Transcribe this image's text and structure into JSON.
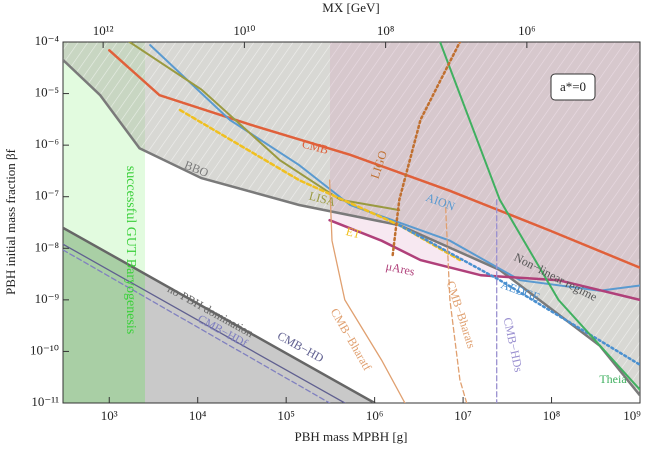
{
  "chart_data": {
    "type": "line",
    "xlabel": "PBH mass MPBH [g]",
    "ylabel": "PBH initial mass fraction βf",
    "x2label": "MX [GeV]",
    "xscale": "log",
    "yscale": "log",
    "xlim": [
      300,
      1000000000.0
    ],
    "ylim": [
      1e-11,
      0.0001
    ],
    "x2lim": [
      3700000000000.0,
      25000.0
    ],
    "xticks": [
      {
        "value": 1000.0,
        "label": "10³"
      },
      {
        "value": 10000.0,
        "label": "10⁴"
      },
      {
        "value": 100000.0,
        "label": "10⁵"
      },
      {
        "value": 1000000.0,
        "label": "10⁶"
      },
      {
        "value": 10000000.0,
        "label": "10⁷"
      },
      {
        "value": 100000000.0,
        "label": "10⁸"
      },
      {
        "value": 1000000000.0,
        "label": "10⁹"
      }
    ],
    "yticks": [
      {
        "value": 0.0001,
        "label": "10⁻⁴"
      },
      {
        "value": 1e-05,
        "label": "10⁻⁵"
      },
      {
        "value": 1e-06,
        "label": "10⁻⁶"
      },
      {
        "value": 1e-07,
        "label": "10⁻⁷"
      },
      {
        "value": 1e-08,
        "label": "10⁻⁸"
      },
      {
        "value": 1e-09,
        "label": "10⁻⁹"
      },
      {
        "value": 1e-10,
        "label": "10⁻¹⁰"
      },
      {
        "value": 1e-11,
        "label": "10⁻¹¹"
      }
    ],
    "x2ticks": [
      {
        "value": 1000000000000.0,
        "label": "10¹²"
      },
      {
        "value": 10000000000.0,
        "label": "10¹⁰"
      },
      {
        "value": 100000000.0,
        "label": "10⁸"
      },
      {
        "value": 1000000.0,
        "label": "10⁶"
      }
    ],
    "annotations": [
      "successful GUT Baryogenesis",
      "Non−linear regime",
      "a*=0"
    ],
    "series": [
      {
        "name": "BBO",
        "color": "#7a7a7a",
        "x": [
          300,
          790,
          2200,
          11000,
          140000,
          1900000,
          26000000,
          350000000,
          1000000000.0
        ],
        "values": [
          4.5e-05,
          9.3e-06,
          8.7e-07,
          2.3e-07,
          6.9e-08,
          2.8e-08,
          3.8e-09,
          1.3e-10,
          1.4e-11
        ]
      },
      {
        "name": "CMB",
        "color": "#e0603a",
        "x": [
          1000,
          3700,
          39000,
          530000,
          7100000,
          96000000,
          1000000000.0
        ],
        "values": [
          6.9e-05,
          9.3e-06,
          2.5e-06,
          6.5e-07,
          1.3e-07,
          2.2e-08,
          4.2e-09
        ]
      },
      {
        "name": "AION",
        "color": "#5a9ad0",
        "x": [
          2900,
          23000,
          140000,
          530000,
          7100000,
          44000000,
          350000000,
          1000000000.0
        ],
        "values": [
          8.7e-05,
          3.1e-06,
          4.1e-07,
          6.9e-08,
          1.4e-08,
          2.4e-09,
          1.5e-09,
          1.9e-09
        ]
      },
      {
        "name": "LISA",
        "color": "#9a9a40",
        "x": [
          1700,
          11000,
          85000,
          410000,
          1900000
        ],
        "values": [
          0.0001,
          1.2e-05,
          5.1e-07,
          8.7e-08,
          5.5e-08
        ]
      },
      {
        "name": "ET",
        "color": "#f0c020",
        "x": [
          6300,
          140000,
          1900000,
          9200000
        ],
        "values": [
          4.8e-06,
          2.1e-07,
          2.8e-08,
          5.9e-09
        ]
      },
      {
        "name": "μAres",
        "color": "#b0407a",
        "x": [
          310000,
          1200000,
          3300000,
          16000000,
          120000000,
          1000000000.0
        ],
        "values": [
          3.5e-08,
          1.4e-08,
          5.9e-09,
          3e-09,
          2.4e-09,
          1e-09
        ]
      },
      {
        "name": "AEDGE",
        "color": "#4a90d0",
        "x": [
          1900000,
          26000000,
          1000000000.0
        ],
        "values": [
          2.8e-08,
          2.4e-09,
          5.5e-11
        ]
      },
      {
        "name": "Theia",
        "color": "#40b060",
        "x": [
          5500000,
          26000000,
          120000000,
          1000000000.0
        ],
        "values": [
          0.0001,
          8.7e-08,
          1e-09,
          1.8e-11
        ]
      },
      {
        "name": "LIGO",
        "color": "#c07030",
        "x": [
          1600000,
          1900000,
          3300000,
          9200000
        ],
        "values": [
          7.4e-09,
          8.7e-08,
          3.1e-06,
          0.0001
        ]
      },
      {
        "name": "CMB−Bharatf",
        "color": "#e0a070",
        "x": [
          310000,
          330000,
          460000,
          1200000,
          2200000
        ],
        "values": [
          2.1e-07,
          1.4e-08,
          1e-09,
          6.8e-11,
          1e-11
        ]
      },
      {
        "name": "CMB−Bharats",
        "color": "#e0a070",
        "x": [
          6300000,
          7100000,
          9200000,
          11000000
        ],
        "values": [
          8.7e-08,
          1e-09,
          2.8e-11,
          1e-11
        ]
      },
      {
        "name": "CMB−HDs",
        "color": "#9a90d0",
        "x": [
          24000000,
          24000000
        ],
        "values": [
          8.7e-08,
          1e-11
        ]
      },
      {
        "name": "no PBH domination",
        "color": "#666666",
        "x": [
          300,
          1000000
        ],
        "values": [
          2.5e-08,
          1e-11
        ]
      },
      {
        "name": "CMB−HDf",
        "color": "#8080c0",
        "x": [
          300,
          310000
        ],
        "values": [
          9.3e-09,
          1e-11
        ]
      },
      {
        "name": "CMB−HD",
        "color": "#606090",
        "x": [
          300,
          460000
        ],
        "values": [
          1.2e-08,
          1e-11
        ]
      }
    ]
  }
}
